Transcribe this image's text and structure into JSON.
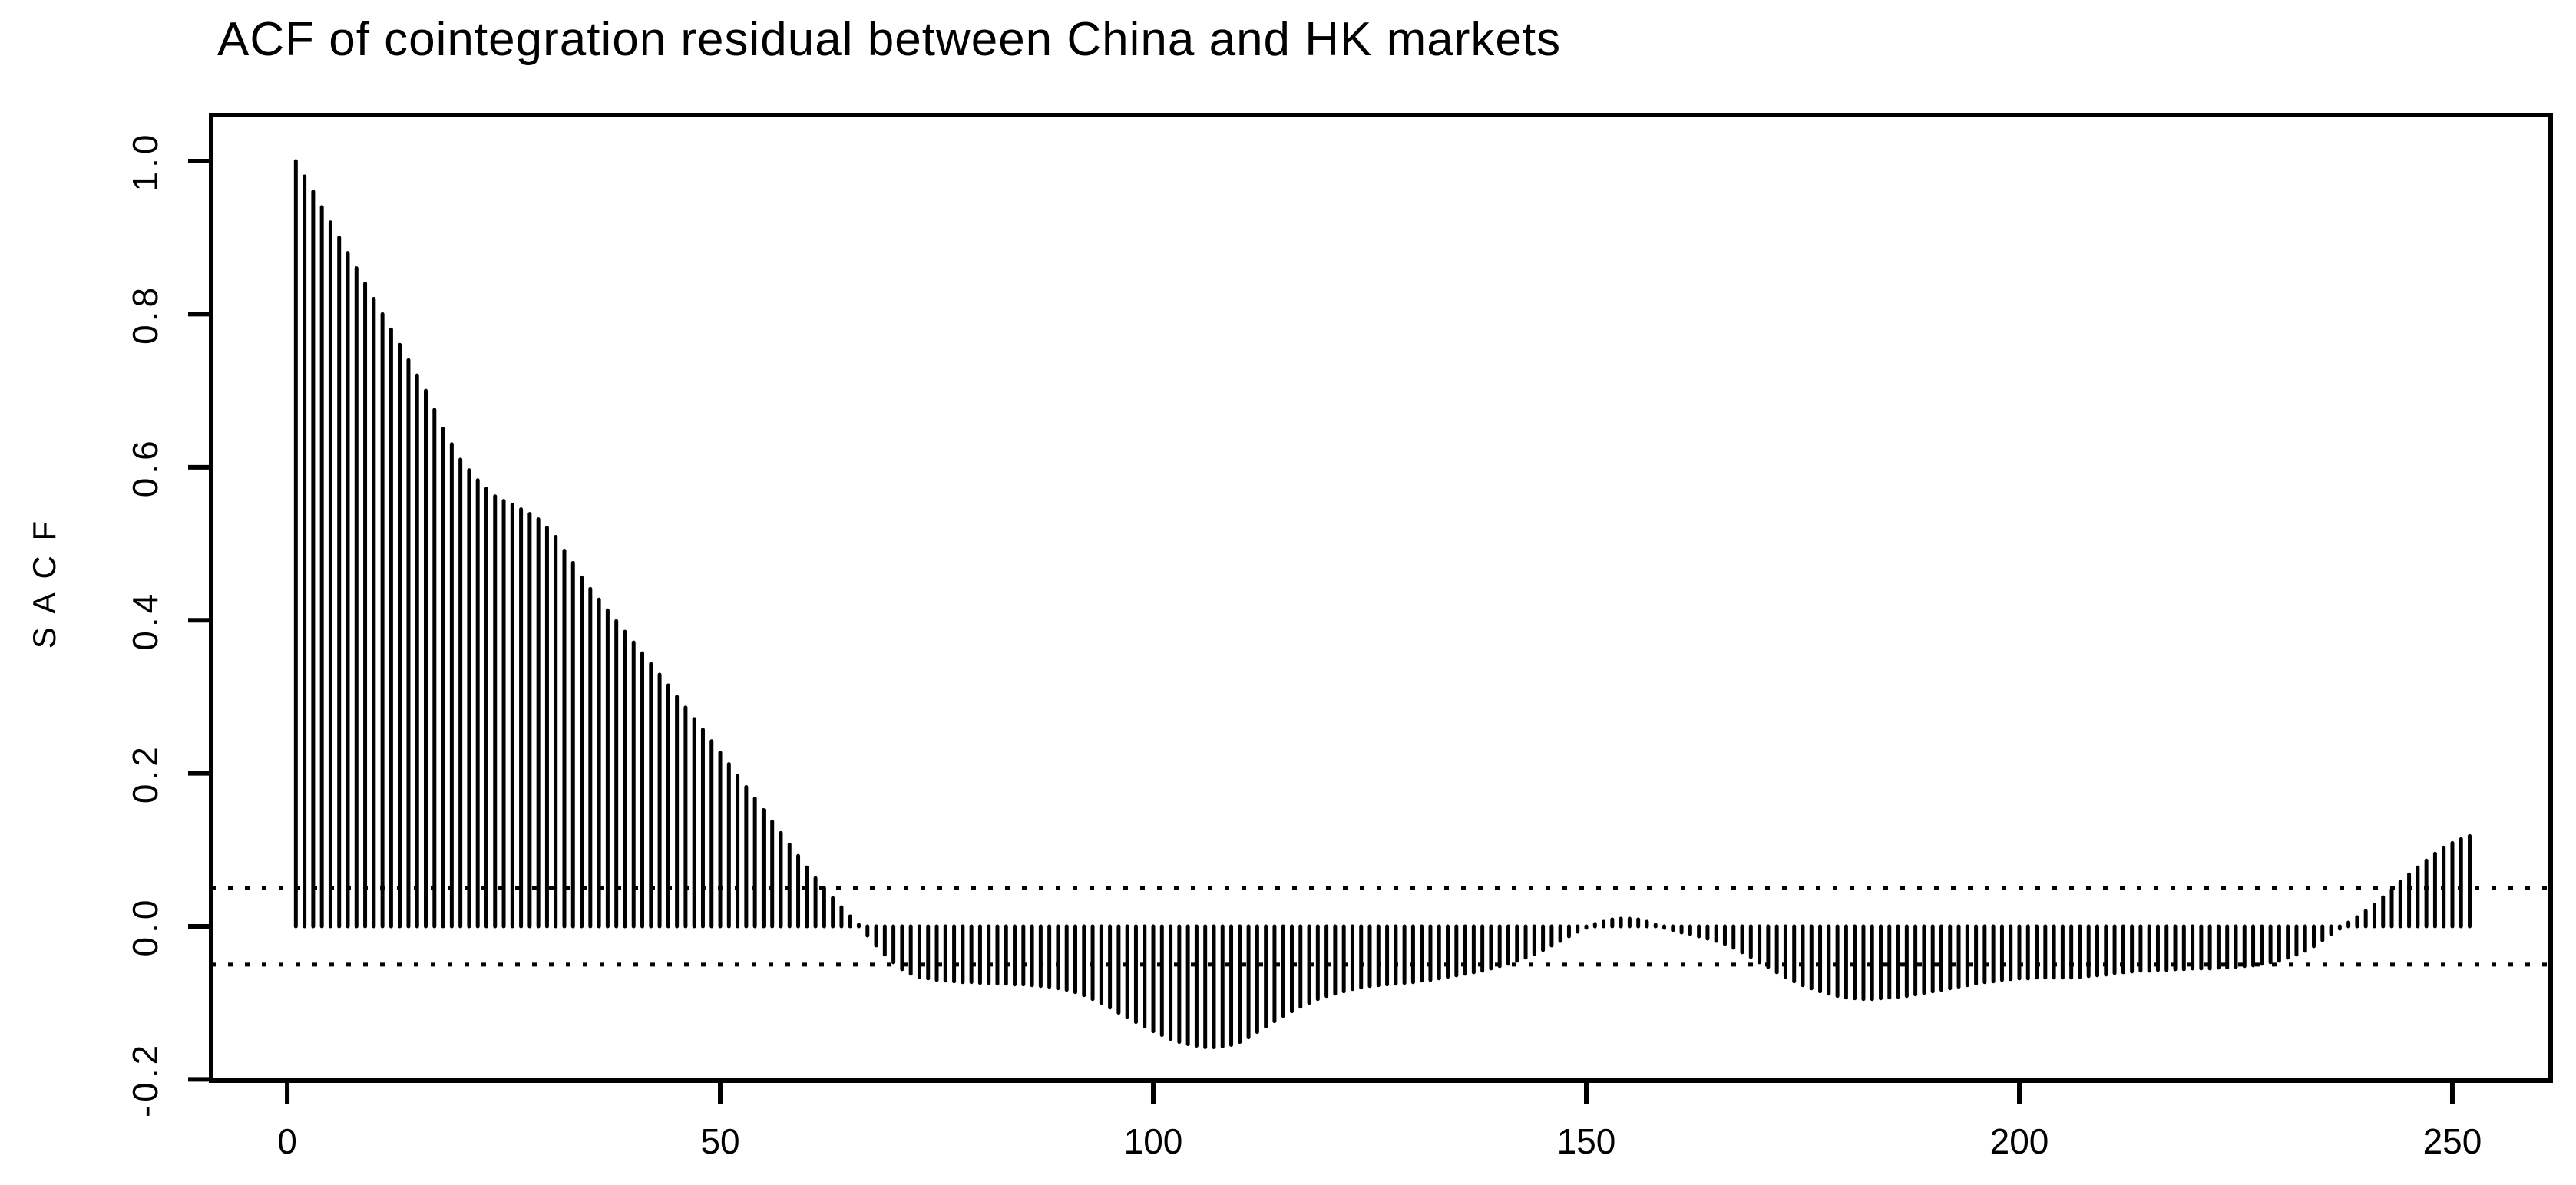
{
  "page": {
    "background": "#ffffff",
    "foreground": "#000000"
  },
  "chart_data": {
    "type": "bar",
    "subtype": "acf-spike-plot",
    "title": "ACF of cointegration residual between China and HK markets",
    "xlabel": "",
    "ylabel": "S A C F",
    "grid": false,
    "legend": null,
    "bar_color": "#000000",
    "frame_color": "#000000",
    "xlim": [
      -8.78,
      261.35
    ],
    "ylim": [
      -0.2016,
      1.0602
    ],
    "x_ticks": [
      0,
      50,
      100,
      150,
      200,
      250
    ],
    "x_tick_labels": [
      "0",
      "50",
      "100",
      "150",
      "200",
      "250"
    ],
    "y_ticks": [
      -0.2,
      0.0,
      0.2,
      0.4,
      0.6,
      0.8,
      1.0
    ],
    "y_tick_labels": [
      "-0.2",
      "0.0",
      "0.2",
      "0.4",
      "0.6",
      "0.8",
      "1.0"
    ],
    "confidence_bands": [
      0.05,
      -0.05
    ],
    "confidence_band_style": "dotted",
    "first_lag": 1,
    "lag_step": 1,
    "values": [
      1.0,
      0.98,
      0.96,
      0.94,
      0.92,
      0.9,
      0.88,
      0.86,
      0.84,
      0.82,
      0.8,
      0.78,
      0.76,
      0.74,
      0.72,
      0.7,
      0.675,
      0.65,
      0.63,
      0.61,
      0.596,
      0.583,
      0.572,
      0.562,
      0.556,
      0.551,
      0.545,
      0.539,
      0.532,
      0.521,
      0.509,
      0.491,
      0.475,
      0.456,
      0.441,
      0.427,
      0.413,
      0.399,
      0.385,
      0.371,
      0.357,
      0.343,
      0.329,
      0.315,
      0.3,
      0.286,
      0.271,
      0.257,
      0.242,
      0.227,
      0.212,
      0.197,
      0.182,
      0.167,
      0.152,
      0.137,
      0.122,
      0.107,
      0.092,
      0.077,
      0.063,
      0.05,
      0.037,
      0.025,
      0.013,
      0.002,
      -0.012,
      -0.025,
      -0.037,
      -0.047,
      -0.056,
      -0.062,
      -0.066,
      -0.068,
      -0.07,
      -0.071,
      -0.072,
      -0.073,
      -0.073,
      -0.074,
      -0.074,
      -0.075,
      -0.075,
      -0.076,
      -0.076,
      -0.077,
      -0.078,
      -0.079,
      -0.081,
      -0.083,
      -0.086,
      -0.09,
      -0.095,
      -0.1,
      -0.106,
      -0.113,
      -0.119,
      -0.125,
      -0.131,
      -0.137,
      -0.142,
      -0.147,
      -0.151,
      -0.154,
      -0.156,
      -0.158,
      -0.158,
      -0.157,
      -0.155,
      -0.151,
      -0.145,
      -0.138,
      -0.131,
      -0.124,
      -0.117,
      -0.111,
      -0.105,
      -0.1,
      -0.095,
      -0.091,
      -0.088,
      -0.085,
      -0.082,
      -0.08,
      -0.078,
      -0.077,
      -0.076,
      -0.075,
      -0.074,
      -0.073,
      -0.071,
      -0.07,
      -0.068,
      -0.066,
      -0.064,
      -0.062,
      -0.06,
      -0.058,
      -0.055,
      -0.052,
      -0.049,
      -0.045,
      -0.041,
      -0.036,
      -0.031,
      -0.025,
      -0.019,
      -0.013,
      -0.007,
      -0.002,
      0.003,
      0.006,
      0.009,
      0.01,
      0.01,
      0.009,
      0.006,
      0.002,
      -0.002,
      -0.005,
      -0.008,
      -0.01,
      -0.013,
      -0.016,
      -0.019,
      -0.023,
      -0.028,
      -0.034,
      -0.04,
      -0.047,
      -0.053,
      -0.06,
      -0.066,
      -0.072,
      -0.077,
      -0.081,
      -0.085,
      -0.088,
      -0.091,
      -0.093,
      -0.094,
      -0.095,
      -0.095,
      -0.094,
      -0.093,
      -0.092,
      -0.091,
      -0.089,
      -0.087,
      -0.085,
      -0.083,
      -0.081,
      -0.079,
      -0.077,
      -0.075,
      -0.073,
      -0.072,
      -0.07,
      -0.069,
      -0.068,
      -0.068,
      -0.067,
      -0.067,
      -0.067,
      -0.067,
      -0.067,
      -0.066,
      -0.065,
      -0.064,
      -0.063,
      -0.061,
      -0.06,
      -0.059,
      -0.058,
      -0.058,
      -0.057,
      -0.057,
      -0.056,
      -0.056,
      -0.055,
      -0.055,
      -0.055,
      -0.054,
      -0.054,
      -0.053,
      -0.052,
      -0.051,
      -0.049,
      -0.047,
      -0.045,
      -0.041,
      -0.037,
      -0.032,
      -0.026,
      -0.018,
      -0.01,
      -0.003,
      0.005,
      0.012,
      0.02,
      0.028,
      0.038,
      0.048,
      0.058,
      0.068,
      0.077,
      0.086,
      0.095,
      0.103,
      0.109,
      0.114,
      0.118
    ]
  }
}
